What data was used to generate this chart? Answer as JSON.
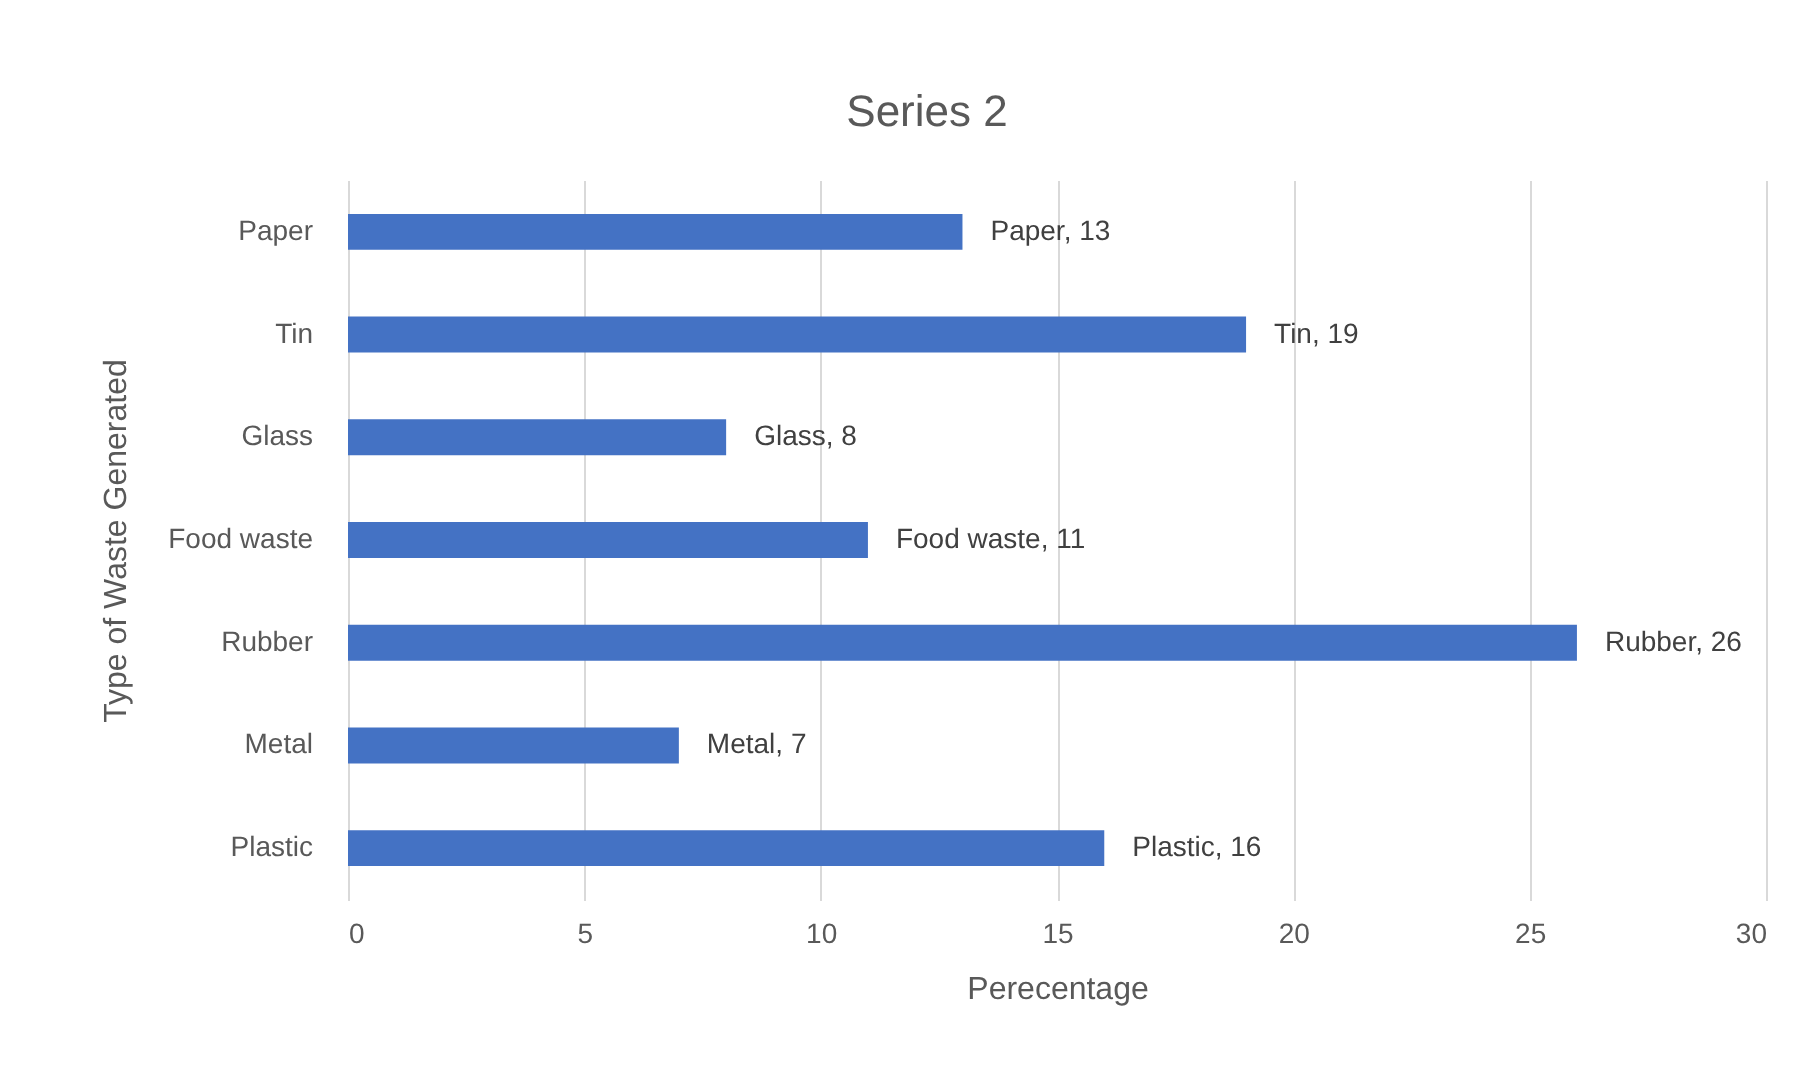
{
  "chart_data": {
    "type": "bar",
    "orientation": "horizontal",
    "title": "Series 2",
    "xlabel": "Perecentage",
    "ylabel": "Type of Waste Generated",
    "categories": [
      "Paper",
      "Tin",
      "Glass",
      "Food waste",
      "Rubber",
      "Metal",
      "Plastic"
    ],
    "values": [
      13,
      19,
      8,
      11,
      26,
      7,
      16
    ],
    "value_labels": [
      "Paper, 13",
      "Tin, 19",
      "Glass, 8",
      "Food waste, 11",
      "Rubber, 26",
      "Metal, 7",
      "Plastic, 16"
    ],
    "color": "#4472c4",
    "xlim": [
      0,
      30
    ],
    "xticks": [
      0,
      5,
      10,
      15,
      20,
      25,
      30
    ],
    "grid": "x"
  }
}
